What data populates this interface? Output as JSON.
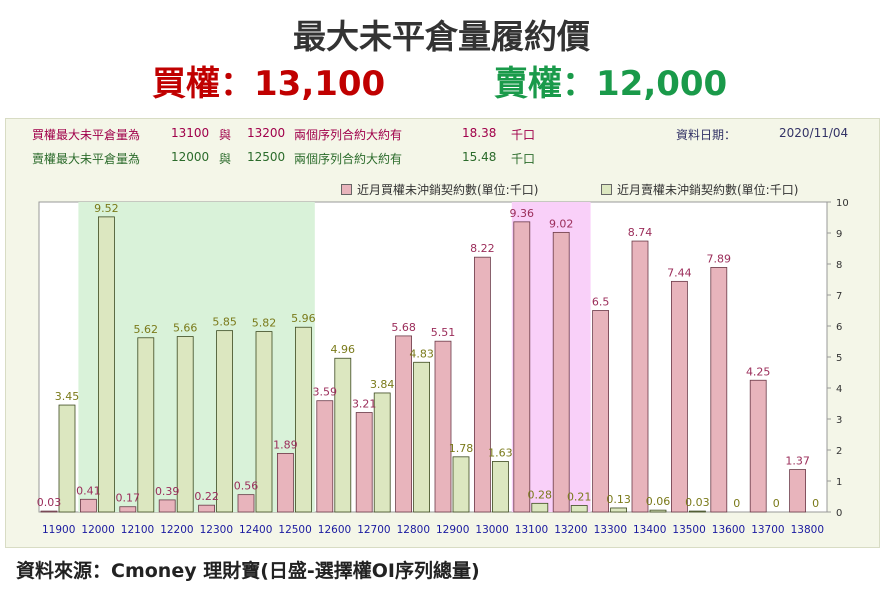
{
  "title": "最大未平倉量履約價",
  "call_summary": {
    "label": "買權",
    "sep": "：",
    "value": "13,100"
  },
  "put_summary": {
    "label": "賣權",
    "sep": "：",
    "value": "12,000"
  },
  "info": {
    "call_line": {
      "prefix": "買權最大未平倉量為",
      "strike1": "13100",
      "conj": "與",
      "strike2": "13200",
      "desc": "兩個序列合約大約有",
      "amount": "18.38",
      "unit": "千口"
    },
    "put_line": {
      "prefix": "賣權最大未平倉量為",
      "strike1": "12000",
      "conj": "與",
      "strike2": "12500",
      "desc": "兩個序列合約大約有",
      "amount": "15.48",
      "unit": "千口"
    },
    "date_label": "資料日期：",
    "date_value": "2020/11/04"
  },
  "source": "資料來源：Cmoney 理財寶(日盛-選擇權OI序列總量)",
  "colors": {
    "call_bar": "#e8b4bc",
    "put_bar": "#dce7c0",
    "call_label": "#9b2d5a",
    "put_label": "#7a7a1a",
    "put_band": "#d9f2d9",
    "call_band": "#f9d0f9",
    "axis_text": "#1a1aa0"
  },
  "chart_data": {
    "type": "bar",
    "categories": [
      "11900",
      "12000",
      "12100",
      "12200",
      "12300",
      "12400",
      "12500",
      "12600",
      "12700",
      "12800",
      "12900",
      "13000",
      "13100",
      "13200",
      "13300",
      "13400",
      "13500",
      "13600",
      "13700",
      "13800"
    ],
    "series": [
      {
        "name": "近月買權未沖銷契約數(單位:千口)",
        "values": [
          0.03,
          0.41,
          0.17,
          0.39,
          0.22,
          0.56,
          1.89,
          3.59,
          3.21,
          5.68,
          5.51,
          8.22,
          9.36,
          9.02,
          6.5,
          8.74,
          7.44,
          7.89,
          4.25,
          1.37
        ],
        "labels": [
          "0.03",
          "0.41",
          "0.17",
          "0.39",
          "0.22",
          "0.56",
          "1.89",
          "3.59",
          "3.21",
          "5.68",
          "5.51",
          "8.22",
          "9.36",
          "9.02",
          "6.5",
          "8.74",
          "7.44",
          "7.89",
          "4.25",
          "1.37"
        ]
      },
      {
        "name": "近月賣權未沖銷契約數(單位:千口)",
        "values": [
          3.45,
          9.52,
          5.62,
          5.66,
          5.85,
          5.82,
          5.96,
          4.96,
          3.84,
          4.83,
          1.78,
          1.63,
          0.28,
          0.21,
          0.13,
          0.06,
          0.03,
          0,
          0,
          0
        ],
        "labels": [
          "3.45",
          "9.52",
          "5.62",
          "5.66",
          "5.85",
          "5.82",
          "5.96",
          "4.96",
          "3.84",
          "4.83",
          "1.78",
          "1.63",
          "0.28",
          "0.21",
          "0.13",
          "0.06",
          "0.03",
          "0",
          "0",
          "0"
        ]
      }
    ],
    "yticks": [
      "0",
      "1",
      "2",
      "3",
      "4",
      "5",
      "6",
      "7",
      "8",
      "9",
      "10"
    ],
    "ylim": [
      0,
      10
    ],
    "y_axis_side": "right",
    "highlight_put_range": [
      "12000",
      "12500"
    ],
    "highlight_call_range": [
      "13100",
      "13200"
    ],
    "legend_position": "top-right",
    "grid": false
  }
}
